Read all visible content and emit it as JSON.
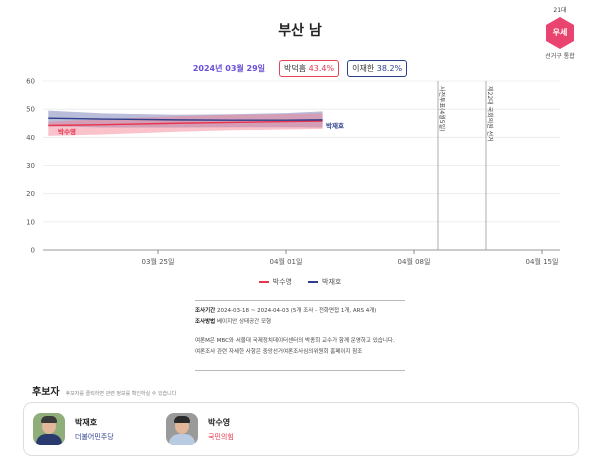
{
  "header": {
    "title": "부산 남",
    "badge": {
      "top": "21대",
      "label": "우세",
      "bottom": "선거구 통합",
      "color": "#e9446f"
    }
  },
  "summary": {
    "date": "2024년 03월 29일",
    "items": [
      {
        "name": "박덕흠",
        "value": "43.4%",
        "color": "#e8344e"
      },
      {
        "name": "이재한",
        "value": "38.2%",
        "color": "#2c3e8c"
      }
    ]
  },
  "chart_data": {
    "type": "line",
    "title": "",
    "xlabel": "",
    "ylabel": "",
    "ylim": [
      0,
      60
    ],
    "yticks": [
      0,
      10,
      20,
      30,
      40,
      50,
      60
    ],
    "xticks": [
      "03월 25일",
      "04월 01일",
      "04월 08일",
      "04월 15일"
    ],
    "grid": true,
    "legend_position": "bottom",
    "x": [
      "03-19",
      "03-22",
      "03-26",
      "03-29",
      "04-01",
      "04-03"
    ],
    "series": [
      {
        "name": "박수영",
        "color": "#e8344e",
        "values": [
          44.2,
          44.5,
          45.0,
          45.3,
          45.6,
          45.8
        ],
        "ci_low": [
          40.5,
          41.0,
          42.0,
          42.5,
          42.8,
          43.0
        ],
        "ci_high": [
          45.5,
          46.5,
          47.5,
          48.0,
          48.3,
          48.5
        ]
      },
      {
        "name": "박재호",
        "color": "#2c3e8c",
        "values": [
          46.8,
          46.5,
          46.2,
          46.1,
          46.1,
          46.2
        ],
        "ci_low": [
          44.0,
          43.5,
          43.5,
          43.6,
          43.6,
          43.5
        ],
        "ci_high": [
          49.5,
          48.5,
          48.0,
          48.2,
          48.6,
          49.2
        ]
      }
    ],
    "annotations": [
      {
        "label": "사전투표(4월5일)",
        "type": "vline"
      },
      {
        "label": "제22대 국회의원 선거",
        "type": "vline"
      }
    ],
    "series_labels": {
      "start": "박수영",
      "end": "박재호"
    }
  },
  "legend": [
    {
      "name": "박수영",
      "color": "#e8344e"
    },
    {
      "name": "박재호",
      "color": "#2c3e8c"
    }
  ],
  "info": {
    "period_label": "조사기간",
    "period_value": "2024-03-18 ~ 2024-04-03 (5개 조사 - 전화면접 1개, ARS 4개)",
    "method_label": "조사방법",
    "method_value": "베이지안 상태공간 모형",
    "note1": "여론M은 MBC와 서울대 국제정치데이터센터의 박종희 교수가 함께 운영하고 있습니다.",
    "note2": "여론조사 관련 자세한 사항은 중앙선거여론조사심의위원회 홈페이지 참조"
  },
  "candidates": {
    "heading": "후보자",
    "subheading": "후보자를 클릭하면 관련 정보를 확인하실 수 있습니다",
    "items": [
      {
        "name": "박재호",
        "party": "더불어민주당",
        "party_color": "#2c3e8c"
      },
      {
        "name": "박수영",
        "party": "국민의힘",
        "party_color": "#e8344e"
      }
    ]
  }
}
